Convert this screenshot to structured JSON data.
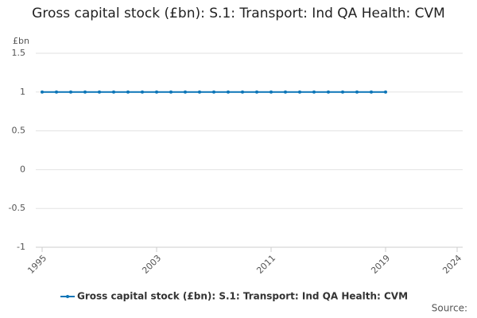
{
  "chart_data": {
    "type": "line",
    "title": "Gross capital stock (£bn): S.1: Transport: Ind QA Health: CVM",
    "y_label": "£bn",
    "source": "Source:",
    "x": [
      1995,
      1996,
      1997,
      1998,
      1999,
      2000,
      2001,
      2002,
      2003,
      2004,
      2005,
      2006,
      2007,
      2008,
      2009,
      2010,
      2011,
      2012,
      2013,
      2014,
      2015,
      2016,
      2017,
      2018,
      2019
    ],
    "series": [
      {
        "name": "Gross capital stock (£bn): S.1: Transport: Ind QA Health: CVM",
        "color": "#0b75b7",
        "values": [
          1,
          1,
          1,
          1,
          1,
          1,
          1,
          1,
          1,
          1,
          1,
          1,
          1,
          1,
          1,
          1,
          1,
          1,
          1,
          1,
          1,
          1,
          1,
          1,
          1
        ]
      }
    ],
    "xlim": [
      1995,
      2024
    ],
    "xticks": [
      1995,
      2003,
      2011,
      2019,
      2024
    ],
    "ylim": [
      -1,
      1.5
    ],
    "yticks": [
      -1,
      -0.5,
      0,
      0.5,
      1,
      1.5
    ],
    "grid": true
  }
}
